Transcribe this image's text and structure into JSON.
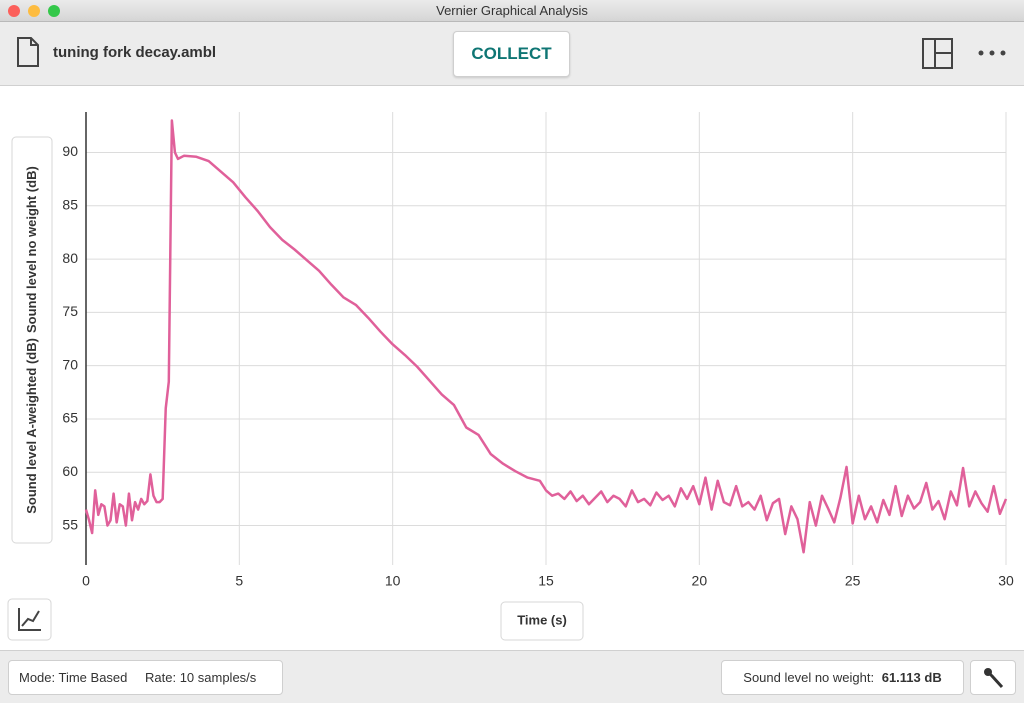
{
  "window": {
    "title": "Vernier Graphical Analysis"
  },
  "toolbar": {
    "file_name": "tuning fork decay.ambl",
    "collect_button": "COLLECT"
  },
  "chart_data": {
    "type": "line",
    "y_axis_labels": [
      "Sound level A-weighted (dB)",
      "Sound level no weight (dB)"
    ],
    "x_label": "Time (s)",
    "color": "#e0609a",
    "grid": true,
    "xlim": [
      0,
      30
    ],
    "xticks": [
      0,
      5,
      10,
      15,
      20,
      25,
      30
    ],
    "ylim": [
      51.3,
      93.8
    ],
    "yticks": [
      55,
      60,
      65,
      70,
      75,
      80,
      85,
      90
    ],
    "x": [
      0,
      0.1,
      0.2,
      0.3,
      0.4,
      0.5,
      0.6,
      0.7,
      0.8,
      0.9,
      1,
      1.1,
      1.2,
      1.3,
      1.4,
      1.5,
      1.6,
      1.7,
      1.8,
      1.9,
      2,
      2.1,
      2.2,
      2.3,
      2.4,
      2.5,
      2.6,
      2.7,
      2.8,
      2.9,
      3,
      3.2,
      3.6,
      4,
      4.4,
      4.8,
      5.2,
      5.6,
      6,
      6.4,
      6.8,
      7.2,
      7.6,
      8,
      8.4,
      8.8,
      9.2,
      9.6,
      10,
      10.4,
      10.8,
      11.2,
      11.6,
      12,
      12.4,
      12.8,
      13.2,
      13.6,
      14,
      14.4,
      14.8,
      15,
      15.2,
      15.4,
      15.6,
      15.8,
      16,
      16.2,
      16.4,
      16.6,
      16.8,
      17,
      17.2,
      17.4,
      17.6,
      17.8,
      18,
      18.2,
      18.4,
      18.6,
      18.8,
      19,
      19.2,
      19.4,
      19.6,
      19.8,
      20,
      20.2,
      20.4,
      20.6,
      20.8,
      21,
      21.2,
      21.4,
      21.6,
      21.8,
      22,
      22.2,
      22.4,
      22.6,
      22.8,
      23,
      23.2,
      23.4,
      23.6,
      23.8,
      24,
      24.2,
      24.4,
      24.6,
      24.8,
      25,
      25.2,
      25.4,
      25.6,
      25.8,
      26,
      26.2,
      26.4,
      26.6,
      26.8,
      27,
      27.2,
      27.4,
      27.6,
      27.8,
      28,
      28.2,
      28.4,
      28.6,
      28.8,
      29,
      29.2,
      29.4,
      29.6,
      29.8,
      30
    ],
    "values": [
      56.5,
      55.5,
      54.3,
      58.3,
      56,
      57,
      56.8,
      55,
      55.5,
      58,
      55.3,
      57,
      56.8,
      55,
      58,
      55.5,
      57.2,
      56.5,
      57.5,
      57,
      57.3,
      59.8,
      57.8,
      57.2,
      57.2,
      57.5,
      66,
      68.5,
      93,
      90,
      89.4,
      89.7,
      89.6,
      89.2,
      88.2,
      87.2,
      85.8,
      84.5,
      83,
      81.8,
      80.9,
      79.9,
      78.9,
      77.6,
      76.4,
      75.7,
      74.5,
      73.2,
      72,
      71,
      69.9,
      68.6,
      67.3,
      66.3,
      64.2,
      63.5,
      61.7,
      60.8,
      60.1,
      59.5,
      59.2,
      58.3,
      57.8,
      58,
      57.5,
      58.2,
      57.3,
      57.8,
      57,
      57.6,
      58.2,
      57.2,
      57.8,
      57.5,
      56.8,
      58.3,
      57.2,
      57.5,
      56.9,
      58.1,
      57.4,
      57.8,
      56.8,
      58.5,
      57.5,
      58.7,
      57,
      59.5,
      56.5,
      59.2,
      57.2,
      56.9,
      58.7,
      56.8,
      57.2,
      56.5,
      57.8,
      55.5,
      57.1,
      57.5,
      54.2,
      56.8,
      55.6,
      52.5,
      57.2,
      55,
      57.8,
      56.6,
      55.3,
      57.6,
      60.5,
      55.2,
      57.8,
      55.6,
      56.8,
      55.3,
      57.4,
      56,
      58.7,
      55.9,
      57.8,
      56.6,
      57.2,
      59,
      56.5,
      57.3,
      55.6,
      58.2,
      56.9,
      60.4,
      56.8,
      58.2,
      57.1,
      56.3,
      58.7,
      56.1,
      57.5
    ]
  },
  "status_bar": {
    "mode": "Mode: Time Based",
    "rate": "Rate: 10 samples/s",
    "sensor_label": "Sound level no weight:",
    "sensor_value": "61.113 dB"
  }
}
